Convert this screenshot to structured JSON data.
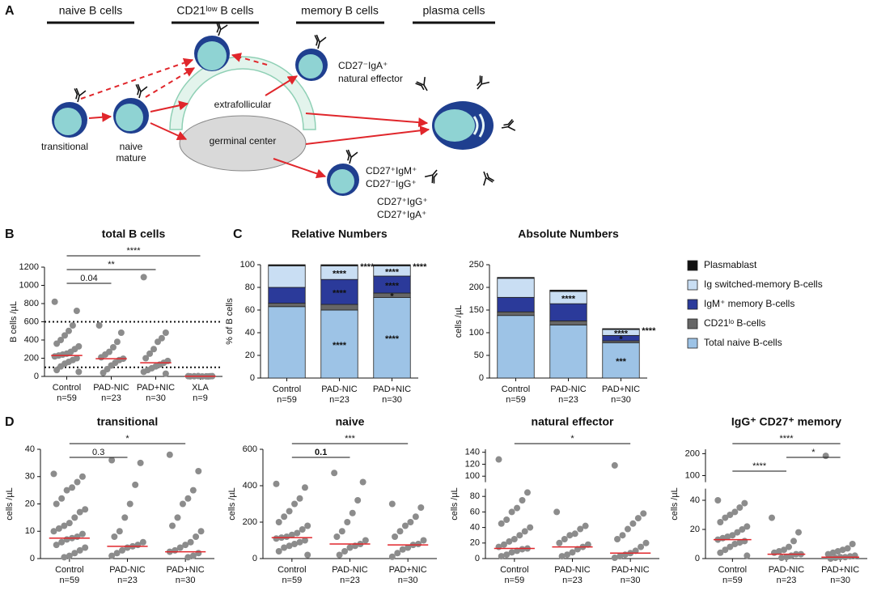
{
  "panel_labels": [
    "A",
    "B",
    "C",
    "D"
  ],
  "diagram": {
    "headers": [
      "naive B cells",
      "CD21ˡᵒʷ B cells",
      "memory B cells",
      "plasma cells"
    ],
    "transitional": "transitional",
    "naive_mature": [
      "naive",
      "mature"
    ],
    "extrafollicular": "extrafollicular",
    "germinal_center": "germinal center",
    "natural_effector": [
      "CD27⁻IgA⁺",
      "natural effector"
    ],
    "switched_memory": [
      "CD27⁺IgM⁺",
      "CD27⁻IgG⁺",
      "CD27⁺IgG⁺",
      "CD27⁺IgA⁺"
    ]
  },
  "chart_data": [
    {
      "type": "scatter",
      "title": "total B cells",
      "ylabel": "B cells /µL",
      "categories": [
        "Control",
        "PAD-NIC",
        "PAD+NIC",
        "XLA"
      ],
      "n_labels": [
        "n=59",
        "n=23",
        "n=30",
        "n=9"
      ],
      "values": [
        [
          820,
          720,
          560,
          500,
          450,
          400,
          360,
          330,
          300,
          270,
          250,
          240,
          230,
          220,
          200,
          180,
          160,
          140,
          110,
          70,
          50
        ],
        [
          560,
          480,
          380,
          320,
          270,
          240,
          210,
          195,
          180,
          150,
          120,
          80,
          40
        ],
        [
          1090,
          480,
          420,
          380,
          300,
          250,
          200,
          170,
          150,
          130,
          110,
          90,
          70,
          50,
          30
        ],
        [
          3,
          2,
          1,
          0,
          4,
          2,
          1,
          3,
          0
        ]
      ],
      "medians": [
        230,
        195,
        150,
        2
      ],
      "color": "#8c8c8c",
      "median_color": "#e0262b",
      "reference_lines": [
        600,
        100
      ],
      "ylim": [
        0,
        1200
      ],
      "yticks": [
        0,
        200,
        400,
        600,
        800,
        1000,
        1200
      ],
      "brackets": [
        {
          "from": 0,
          "to": 3,
          "label": "****"
        },
        {
          "from": 0,
          "to": 2,
          "label": "**"
        },
        {
          "from": 0,
          "to": 1,
          "label": "0.04"
        }
      ]
    },
    {
      "type": "stacked_bar",
      "title": "Relative Numbers",
      "ylabel": "% of B cells",
      "categories": [
        "Control",
        "PAD-NIC",
        "PAD+NIC"
      ],
      "n_labels": [
        "n=59",
        "n=23",
        "n=30"
      ],
      "series": [
        {
          "name": "Total naive B-cells",
          "color": "#9dc3e6",
          "values": [
            63,
            60,
            71
          ]
        },
        {
          "name": "CD21ˡᵒ B-cells",
          "color": "#666666",
          "values": [
            3,
            5,
            4
          ]
        },
        {
          "name": "IgM⁺ memory B-cells",
          "color": "#2b3a9a",
          "values": [
            14,
            22,
            15
          ]
        },
        {
          "name": "Ig switched-memory B-cells",
          "color": "#c9def3",
          "values": [
            19,
            12,
            9
          ]
        },
        {
          "name": "Plasmablast",
          "color": "#111111",
          "values": [
            1,
            1,
            1
          ]
        }
      ],
      "legend": "right",
      "ylim": [
        0,
        100
      ],
      "yticks": [
        0,
        20,
        40,
        60,
        80,
        100
      ],
      "annotations": [
        {
          "text": "****",
          "series": 3,
          "category": 1
        },
        {
          "text": "****",
          "series": 2,
          "category": 1
        },
        {
          "text": "****",
          "series": 0,
          "category": 1
        },
        {
          "text": "****",
          "category": 1,
          "side": "right"
        },
        {
          "text": "****",
          "series": 3,
          "category": 2
        },
        {
          "text": "****",
          "series": 2,
          "category": 2
        },
        {
          "text": "*",
          "series": 1,
          "category": 2
        },
        {
          "text": "****",
          "series": 0,
          "category": 2
        },
        {
          "text": "****",
          "category": 2,
          "side": "right"
        }
      ]
    },
    {
      "type": "stacked_bar",
      "title": "Absolute Numbers",
      "ylabel": "cells /µL",
      "categories": [
        "Control",
        "PAD-NIC",
        "PAD+NIC"
      ],
      "n_labels": [
        "n=59",
        "n=23",
        "n=30"
      ],
      "series": [
        {
          "color": "#9dc3e6",
          "values": [
            138,
            117,
            78
          ]
        },
        {
          "color": "#666666",
          "values": [
            8,
            9,
            4
          ]
        },
        {
          "color": "#2b3a9a",
          "values": [
            32,
            38,
            12
          ]
        },
        {
          "color": "#c9def3",
          "values": [
            42,
            27,
            13
          ]
        },
        {
          "color": "#111111",
          "values": [
            2,
            3,
            2
          ]
        }
      ],
      "ylim": [
        0,
        250
      ],
      "yticks": [
        0,
        50,
        100,
        150,
        200,
        250
      ],
      "annotations": [
        {
          "text": "****",
          "series": 3,
          "category": 1
        },
        {
          "text": "****",
          "series": 3,
          "category": 2
        },
        {
          "text": "*",
          "series": 2,
          "category": 2
        },
        {
          "text": "***",
          "series": 0,
          "category": 2
        },
        {
          "text": "****",
          "category": 2,
          "side": "right"
        }
      ]
    },
    {
      "type": "scatter",
      "title": "transitional",
      "ylabel": "cells /µL",
      "categories": [
        "Control",
        "PAD-NIC",
        "PAD+NIC"
      ],
      "n_labels": [
        "n=59",
        "n=23",
        "n=30"
      ],
      "values": [
        [
          31,
          30,
          28,
          26,
          25,
          22,
          20,
          18,
          17,
          15,
          13,
          12,
          11,
          10,
          9,
          8,
          7.5,
          7,
          6,
          5,
          4,
          3,
          2,
          1,
          0.5
        ],
        [
          36,
          35,
          27,
          20,
          15,
          10,
          8,
          6,
          5,
          4.5,
          4,
          3,
          2,
          1
        ],
        [
          38,
          32,
          25,
          22,
          20,
          15,
          12,
          10,
          8,
          6,
          5,
          4,
          3,
          2.5,
          2,
          1,
          0.5
        ]
      ],
      "medians": [
        7.5,
        4.5,
        2.5
      ],
      "color": "#8c8c8c",
      "median_color": "#e0262b",
      "ylim": [
        0,
        40
      ],
      "yticks": [
        0,
        10,
        20,
        30,
        40
      ],
      "brackets": [
        {
          "from": 0,
          "to": 2,
          "label": "*"
        },
        {
          "from": 0,
          "to": 1,
          "label": "0.3"
        }
      ]
    },
    {
      "type": "scatter",
      "title": "naive",
      "ylabel": "cells /µL",
      "categories": [
        "Control",
        "PAD-NIC",
        "PAD+NIC"
      ],
      "n_labels": [
        "n=59",
        "n=23",
        "n=30"
      ],
      "values": [
        [
          410,
          390,
          330,
          300,
          260,
          230,
          200,
          180,
          160,
          140,
          130,
          120,
          115,
          110,
          100,
          90,
          80,
          70,
          60,
          40,
          20
        ],
        [
          470,
          420,
          320,
          250,
          200,
          150,
          120,
          100,
          80,
          70,
          60,
          40,
          20
        ],
        [
          300,
          280,
          230,
          200,
          180,
          150,
          120,
          100,
          80,
          75,
          60,
          50,
          30,
          10
        ]
      ],
      "medians": [
        115,
        80,
        75
      ],
      "color": "#8c8c8c",
      "median_color": "#e0262b",
      "ylim": [
        0,
        600
      ],
      "yticks": [
        0,
        200,
        400,
        600
      ],
      "brackets": [
        {
          "from": 0,
          "to": 2,
          "label": "***"
        },
        {
          "from": 0,
          "to": 1,
          "label": "0.1",
          "bold": true
        }
      ]
    },
    {
      "type": "scatter",
      "title": "natural effector",
      "ylabel": "cells /µL",
      "categories": [
        "Control",
        "PAD-NIC",
        "PAD+NIC"
      ],
      "n_labels": [
        "n=59",
        "n=23",
        "n=30"
      ],
      "values": [
        [
          128,
          85,
          75,
          65,
          60,
          50,
          45,
          40,
          35,
          30,
          25,
          22,
          18,
          15,
          13,
          12,
          10,
          8,
          5,
          3
        ],
        [
          60,
          42,
          38,
          32,
          30,
          25,
          20,
          18,
          15,
          12,
          8,
          5,
          3
        ],
        [
          118,
          58,
          52,
          45,
          38,
          30,
          25,
          20,
          15,
          10,
          7,
          5,
          3,
          1
        ]
      ],
      "medians": [
        13,
        15,
        7
      ],
      "color": "#8c8c8c",
      "median_color": "#e0262b",
      "ylim": [
        0,
        90
      ],
      "yticks": [
        0,
        20,
        40,
        60,
        80
      ],
      "ylim_upper": [
        90,
        145
      ],
      "yticks_upper": [
        100,
        120,
        140
      ],
      "brackets": [
        {
          "from": 0,
          "to": 2,
          "label": "*"
        }
      ]
    },
    {
      "type": "scatter",
      "title": "IgG⁺ CD27⁺ memory",
      "ylabel": "cells /µL",
      "categories": [
        "Control",
        "PAD-NIC",
        "PAD+NIC"
      ],
      "n_labels": [
        "n=59",
        "n=23",
        "n=30"
      ],
      "values": [
        [
          40,
          38,
          35,
          32,
          30,
          28,
          25,
          22,
          20,
          18,
          16,
          15,
          14,
          13,
          12,
          11,
          10,
          8,
          6,
          4,
          2
        ],
        [
          28,
          18,
          12,
          8,
          6,
          5,
          4,
          3,
          3,
          2,
          1,
          0.5
        ],
        [
          190,
          10,
          7,
          6,
          5,
          4,
          3,
          2,
          1.5,
          1,
          1,
          0.5,
          0
        ]
      ],
      "medians": [
        13,
        3,
        1
      ],
      "color": "#8c8c8c",
      "median_color": "#e0262b",
      "ylim": [
        0,
        48
      ],
      "yticks": [
        0,
        20,
        40
      ],
      "ylim_upper": [
        70,
        220
      ],
      "yticks_upper": [
        100,
        200
      ],
      "brackets": [
        {
          "from": 0,
          "to": 2,
          "label": "****"
        },
        {
          "from": 1,
          "to": 2,
          "label": "*"
        },
        {
          "from": 0,
          "to": 1,
          "label": "****"
        }
      ]
    }
  ]
}
